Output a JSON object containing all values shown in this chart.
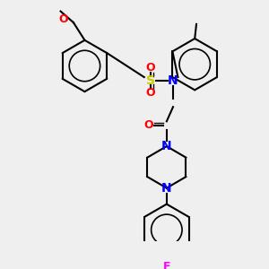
{
  "bg_color": "#efefef",
  "bond_color": "#000000",
  "atom_colors": {
    "N": "#0000ff",
    "O": "#ff0000",
    "S": "#cccc00",
    "F": "#ff00ff",
    "C": "#000000"
  },
  "title": "",
  "figsize": [
    3.0,
    3.0
  ],
  "dpi": 100
}
